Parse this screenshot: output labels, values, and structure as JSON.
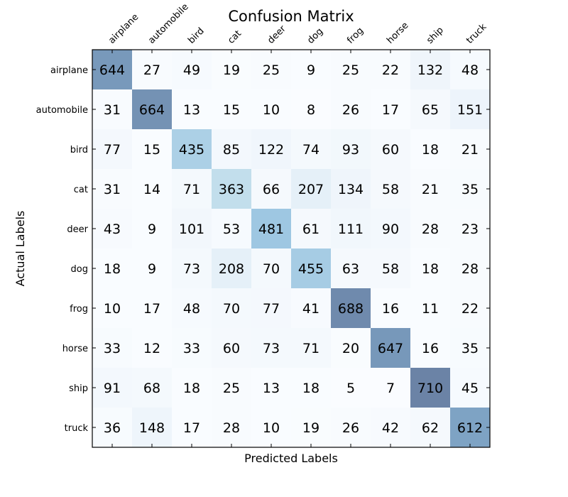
{
  "chart_data": {
    "type": "heatmap",
    "title": "Confusion Matrix",
    "xlabel": "Predicted Labels",
    "ylabel": "Actual Labels",
    "categories": [
      "airplane",
      "automobile",
      "bird",
      "cat",
      "deer",
      "dog",
      "frog",
      "horse",
      "ship",
      "truck"
    ],
    "values": [
      [
        644,
        27,
        49,
        19,
        25,
        9,
        25,
        22,
        132,
        48
      ],
      [
        31,
        664,
        13,
        15,
        10,
        8,
        26,
        17,
        65,
        151
      ],
      [
        77,
        15,
        435,
        85,
        122,
        74,
        93,
        60,
        18,
        21
      ],
      [
        31,
        14,
        71,
        363,
        66,
        207,
        134,
        58,
        21,
        35
      ],
      [
        43,
        9,
        101,
        53,
        481,
        61,
        111,
        90,
        28,
        23
      ],
      [
        18,
        9,
        73,
        208,
        70,
        455,
        63,
        58,
        18,
        28
      ],
      [
        10,
        17,
        48,
        70,
        77,
        41,
        688,
        16,
        11,
        22
      ],
      [
        33,
        12,
        33,
        60,
        73,
        71,
        20,
        647,
        16,
        35
      ],
      [
        91,
        68,
        18,
        25,
        13,
        18,
        5,
        7,
        710,
        45
      ],
      [
        36,
        148,
        17,
        28,
        10,
        19,
        26,
        42,
        62,
        612
      ]
    ],
    "value_range": [
      0,
      710
    ],
    "colormap": "Blues",
    "x_axis_position": "top",
    "grid": false,
    "legend": "none"
  }
}
